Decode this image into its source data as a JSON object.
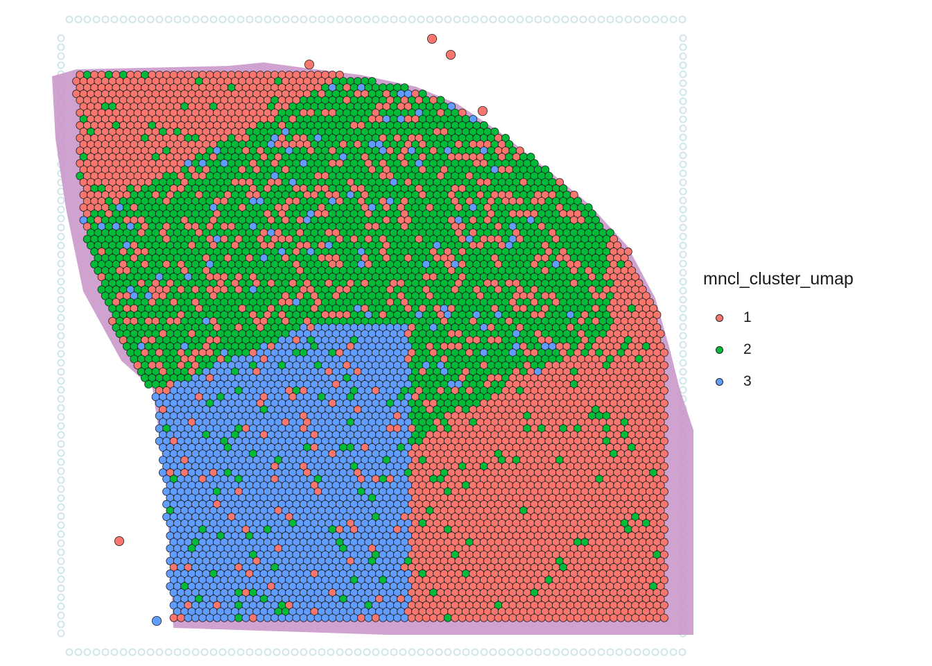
{
  "chart_data": {
    "type": "scatter",
    "title": "",
    "xlabel": "",
    "ylabel": "",
    "grid": false,
    "background": "H&E tissue image with spot array",
    "legend": {
      "title": "mncl_cluster_umap",
      "placement": "right",
      "entries": [
        {
          "label": "1",
          "color": "#F8766D"
        },
        {
          "label": "2",
          "color": "#00BA38"
        },
        {
          "label": "3",
          "color": "#619CFF"
        }
      ]
    },
    "series": [
      {
        "cluster": "1",
        "color": "#F8766D",
        "region": "upper band and right side of tissue section"
      },
      {
        "cluster": "2",
        "color": "#00BA38",
        "region": "central diagonal band of tissue section"
      },
      {
        "cluster": "3",
        "color": "#619CFF",
        "region": "lower-left block of tissue section"
      }
    ],
    "spot_outline_color": "#222222",
    "tissue_color": "#c892c8"
  }
}
